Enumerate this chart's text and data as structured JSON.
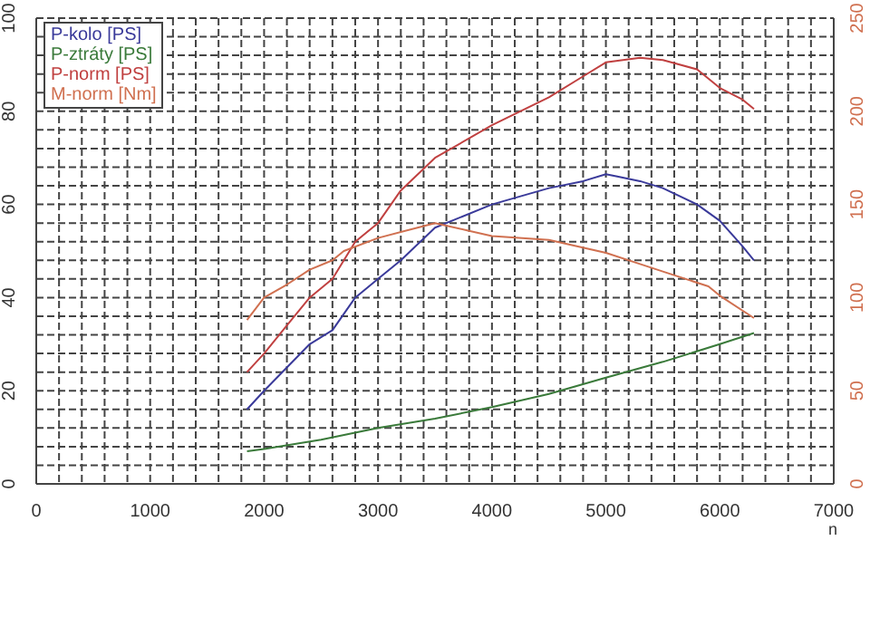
{
  "chart_data": {
    "type": "line",
    "xlabel": "n",
    "xlim": [
      0,
      7000
    ],
    "xticks": [
      0,
      {
        "value": 200,
        "label": null
      },
      {
        "value": 400,
        "label": null
      },
      {
        "value": 600,
        "label": null
      },
      {
        "value": 800,
        "label": null
      },
      1000,
      {
        "value": 1200,
        "label": null
      },
      {
        "value": 1400,
        "label": null
      },
      {
        "value": 1600,
        "label": null
      },
      {
        "value": 1800,
        "label": null
      },
      2000,
      {
        "value": 2200,
        "label": null
      },
      {
        "value": 2400,
        "label": null
      },
      {
        "value": 2600,
        "label": null
      },
      {
        "value": 2800,
        "label": null
      },
      3000,
      {
        "value": 3200,
        "label": null
      },
      {
        "value": 3400,
        "label": null
      },
      {
        "value": 3600,
        "label": null
      },
      {
        "value": 3800,
        "label": null
      },
      4000,
      {
        "value": 4200,
        "label": null
      },
      {
        "value": 4400,
        "label": null
      },
      {
        "value": 4600,
        "label": null
      },
      {
        "value": 4800,
        "label": null
      },
      5000,
      {
        "value": 5200,
        "label": null
      },
      {
        "value": 5400,
        "label": null
      },
      {
        "value": 5600,
        "label": null
      },
      {
        "value": 5800,
        "label": null
      },
      6000,
      {
        "value": 6200,
        "label": null
      },
      {
        "value": 6400,
        "label": null
      },
      {
        "value": 6600,
        "label": null
      },
      {
        "value": 6800,
        "label": null
      },
      7000
    ],
    "ylim": [
      0,
      100
    ],
    "yticks": [
      0,
      {
        "value": 4,
        "label": null
      },
      {
        "value": 8,
        "label": null
      },
      {
        "value": 12,
        "label": null
      },
      {
        "value": 16,
        "label": null
      },
      20,
      {
        "value": 24,
        "label": null
      },
      {
        "value": 28,
        "label": null
      },
      {
        "value": 32,
        "label": null
      },
      {
        "value": 36,
        "label": null
      },
      40,
      {
        "value": 44,
        "label": null
      },
      {
        "value": 48,
        "label": null
      },
      {
        "value": 52,
        "label": null
      },
      {
        "value": 56,
        "label": null
      },
      60,
      {
        "value": 64,
        "label": null
      },
      {
        "value": 68,
        "label": null
      },
      {
        "value": 72,
        "label": null
      },
      {
        "value": 76,
        "label": null
      },
      80,
      {
        "value": 84,
        "label": null
      },
      {
        "value": 88,
        "label": null
      },
      {
        "value": 92,
        "label": null
      },
      {
        "value": 96,
        "label": null
      },
      100
    ],
    "y2lim": [
      0,
      250
    ],
    "y2ticks": [
      0,
      50,
      100,
      150,
      200,
      250
    ],
    "grid": true,
    "legend": "top left",
    "marker": "none",
    "line_style": "solid",
    "series": [
      {
        "name": "P-kolo [PS]",
        "color": "#3a3a9a",
        "x": [
          1850,
          2000,
          2200,
          2400,
          2600,
          2800,
          3000,
          3200,
          3500,
          4000,
          4500,
          4800,
          5000,
          5100,
          5300,
          5500,
          5800,
          6000,
          6200,
          6300
        ],
        "values": [
          16,
          20,
          25,
          30,
          33,
          40,
          44,
          48,
          55,
          60,
          63.5,
          65,
          66.5,
          66,
          65,
          63.5,
          60,
          56.5,
          51,
          48
        ]
      },
      {
        "name": "P-ztráty [PS]",
        "color": "#3a7a3a",
        "x": [
          1850,
          2000,
          2500,
          3000,
          3500,
          4000,
          4500,
          5000,
          5500,
          6000,
          6300
        ],
        "values": [
          7,
          7.5,
          9.5,
          12,
          14,
          16.5,
          19.3,
          22.8,
          26.2,
          30,
          32.4
        ]
      },
      {
        "name": "P-norm [PS]",
        "color": "#c04040",
        "x": [
          1850,
          2000,
          2200,
          2400,
          2600,
          2700,
          2800,
          3000,
          3200,
          3500,
          4000,
          4500,
          4800,
          5000,
          5300,
          5500,
          5800,
          6000,
          6200,
          6300
        ],
        "values": [
          24,
          28,
          34,
          40,
          44,
          48,
          52,
          56,
          63,
          70,
          77,
          83,
          87.5,
          90.5,
          91.5,
          91,
          89,
          85,
          82.5,
          80.5
        ]
      },
      {
        "name": "M-norm [Nm]",
        "color": "#d07050",
        "axis": "y2",
        "x": [
          1850,
          2000,
          2200,
          2400,
          2600,
          2700,
          3000,
          3500,
          4000,
          4500,
          5000,
          5300,
          5500,
          5900,
          6000,
          6300
        ],
        "values": [
          88,
          100,
          107,
          115,
          120,
          125,
          132,
          140,
          133,
          131,
          124,
          118,
          114,
          106,
          101,
          89
        ]
      }
    ]
  }
}
